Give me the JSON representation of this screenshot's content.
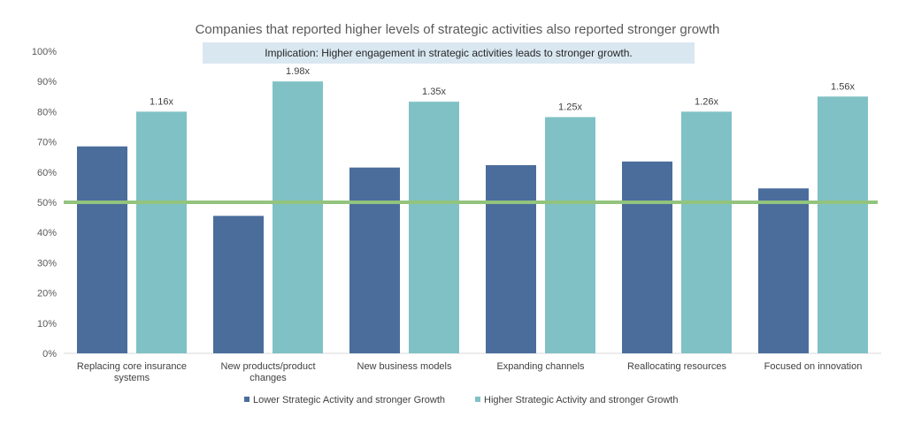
{
  "chart_data": {
    "type": "bar",
    "title": "Companies that reported higher levels of strategic activities also reported stronger growth",
    "annotation": "Implication: Higher engagement in strategic activities leads to stronger growth.",
    "categories": [
      [
        "Replacing core insurance",
        "systems"
      ],
      [
        "New products/product",
        "changes"
      ],
      [
        "New business models"
      ],
      [
        "Expanding channels"
      ],
      [
        "Reallocating resources"
      ],
      [
        "Focused on innovation"
      ]
    ],
    "series": [
      {
        "name": "Lower Strategic Activity and stronger Growth",
        "color": "#4a6d9c",
        "values": [
          68.5,
          45.5,
          61.5,
          62.3,
          63.5,
          54.6
        ]
      },
      {
        "name": "Higher Strategic Activity and stronger Growth",
        "color": "#80c1c5",
        "values": [
          80,
          90,
          83.3,
          78.2,
          80,
          85
        ]
      }
    ],
    "data_labels": [
      "1.16x",
      "1.98x",
      "1.35x",
      "1.25x",
      "1.26x",
      "1.56x"
    ],
    "reference_line": {
      "value": 50,
      "color": "#93c47d"
    },
    "ylim": [
      0,
      100
    ],
    "yticks": [
      0,
      10,
      20,
      30,
      40,
      50,
      60,
      70,
      80,
      90,
      100
    ],
    "ytick_labels": [
      "0%",
      "10%",
      "20%",
      "30%",
      "40%",
      "50%",
      "60%",
      "70%",
      "80%",
      "90%",
      "100%"
    ],
    "xlabel": "",
    "ylabel": "",
    "grid": false,
    "legend": "bottom",
    "annotation_bg": "#d9e7f1"
  }
}
